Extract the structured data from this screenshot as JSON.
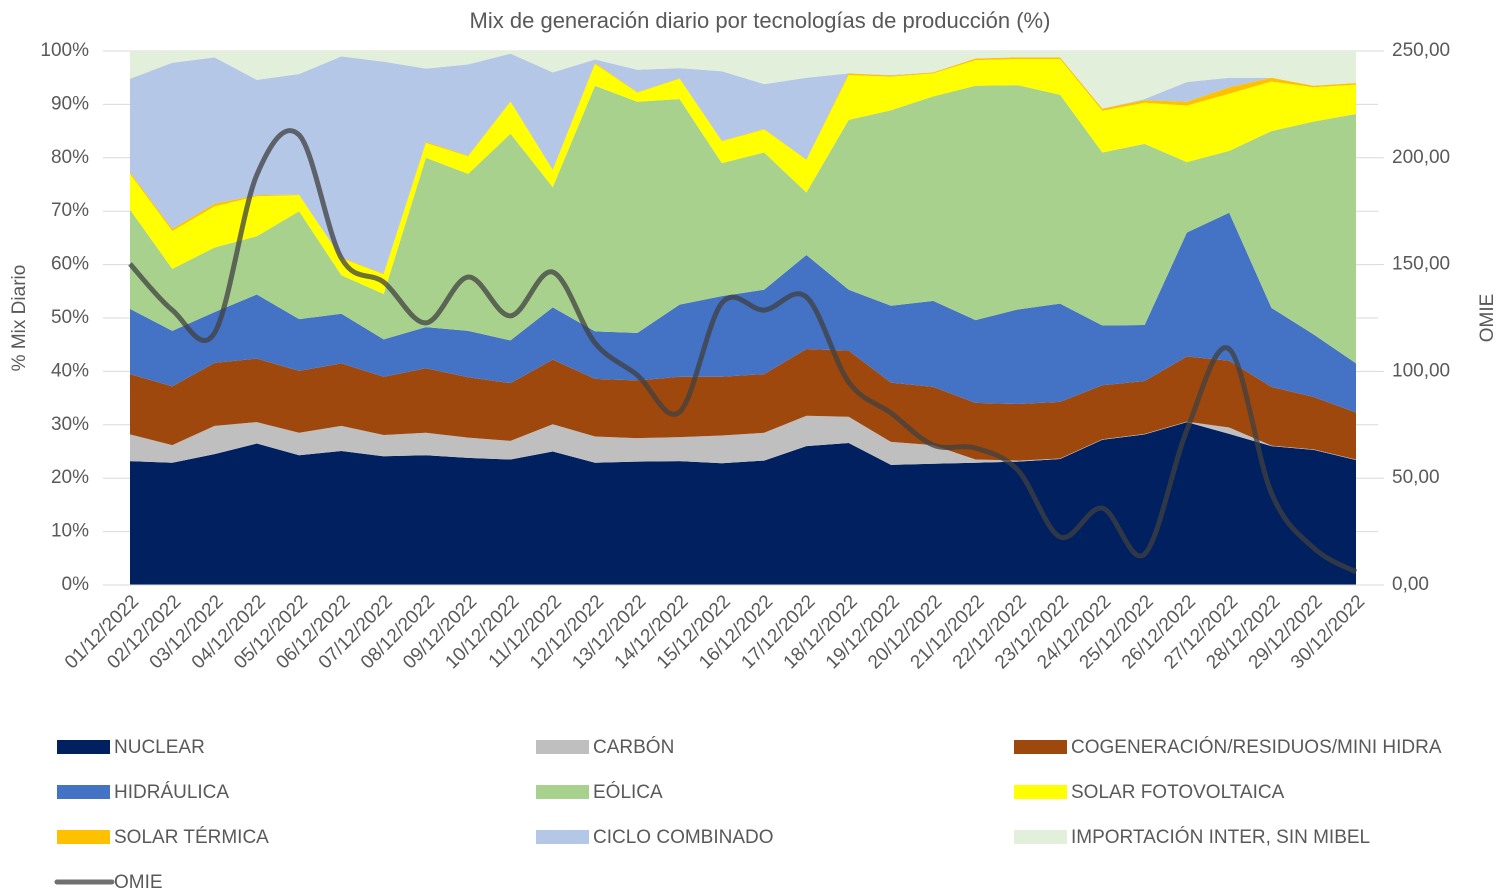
{
  "chart_data": {
    "type": "area",
    "title": "Mix de generación diario por tecnologías de producción (%)",
    "y_label": "% Mix Diario",
    "y2_label": "OMIE",
    "categories": [
      "01/12/2022",
      "02/12/2022",
      "03/12/2022",
      "04/12/2022",
      "05/12/2022",
      "06/12/2022",
      "07/12/2022",
      "08/12/2022",
      "09/12/2022",
      "10/12/2022",
      "11/12/2022",
      "12/12/2022",
      "13/12/2022",
      "14/12/2022",
      "15/12/2022",
      "16/12/2022",
      "17/12/2022",
      "18/12/2022",
      "19/12/2022",
      "20/12/2022",
      "21/12/2022",
      "22/12/2022",
      "23/12/2022",
      "24/12/2022",
      "25/12/2022",
      "26/12/2022",
      "27/12/2022",
      "28/12/2022",
      "29/12/2022",
      "30/12/2022"
    ],
    "stacked": true,
    "grid": true,
    "legend": "bottom",
    "ylim": [
      0,
      100
    ],
    "yticks": [
      {
        "value": 0,
        "label": "0%"
      },
      {
        "value": 10,
        "label": "10%"
      },
      {
        "value": 20,
        "label": "20%"
      },
      {
        "value": 30,
        "label": "30%"
      },
      {
        "value": 40,
        "label": "40%"
      },
      {
        "value": 50,
        "label": "50%"
      },
      {
        "value": 60,
        "label": "60%"
      },
      {
        "value": 70,
        "label": "70%"
      },
      {
        "value": 80,
        "label": "80%"
      },
      {
        "value": 90,
        "label": "90%"
      },
      {
        "value": 100,
        "label": "100%"
      }
    ],
    "y2lim": [
      0,
      250
    ],
    "y2ticks": [
      {
        "value": 0,
        "label": "0,00"
      },
      {
        "value": 50,
        "label": "50,00"
      },
      {
        "value": 100,
        "label": "100,00"
      },
      {
        "value": 150,
        "label": "150,00"
      },
      {
        "value": 200,
        "label": "200,00"
      },
      {
        "value": 250,
        "label": "250,00"
      }
    ],
    "series": [
      {
        "name": "NUCLEAR",
        "color": "#002060",
        "values": [
          23.2,
          22.9,
          24.5,
          26.5,
          24.3,
          25.1,
          24.1,
          24.3,
          23.8,
          23.5,
          25.0,
          22.9,
          23.1,
          23.2,
          22.8,
          23.3,
          26.0,
          26.6,
          22.5,
          22.7,
          22.9,
          23.1,
          23.6,
          27.2,
          28.2,
          30.5,
          28.3,
          26.0,
          25.3,
          23.4
        ]
      },
      {
        "name": "CARBÓN",
        "color": "#bfbfbf",
        "values": [
          5.0,
          3.3,
          5.3,
          4.0,
          4.2,
          4.7,
          4.0,
          4.2,
          3.8,
          3.5,
          5.1,
          4.9,
          4.4,
          4.5,
          5.2,
          5.2,
          5.7,
          4.9,
          4.3,
          3.5,
          0.6,
          0.2,
          0.1,
          0.1,
          0.1,
          0.1,
          1.2,
          0.1,
          0.1,
          0.1
        ]
      },
      {
        "name": "COGENERACIÓN/RESIDUOS/MINI HIDRA",
        "color": "#9e480e",
        "values": [
          11.3,
          11.0,
          11.8,
          11.9,
          11.6,
          11.7,
          10.9,
          12.1,
          11.3,
          10.8,
          12.1,
          10.8,
          10.8,
          11.3,
          11.0,
          11.0,
          12.5,
          12.4,
          11.1,
          10.9,
          10.6,
          10.6,
          10.6,
          10.1,
          9.9,
          12.2,
          12.5,
          11.0,
          9.8,
          8.8
        ]
      },
      {
        "name": "HIDRÁULICA",
        "color": "#4472c4",
        "values": [
          12.2,
          10.4,
          9.5,
          12.0,
          9.7,
          9.3,
          7.0,
          7.7,
          8.7,
          8.0,
          9.8,
          8.9,
          8.9,
          13.5,
          15.1,
          15.8,
          17.6,
          11.4,
          14.4,
          16.1,
          15.5,
          17.7,
          18.4,
          11.2,
          10.5,
          23.2,
          27.7,
          14.8,
          11.7,
          9.2
        ]
      },
      {
        "name": "EÓLICA",
        "color": "#a9d18e",
        "values": [
          18.6,
          11.6,
          12.1,
          10.9,
          20.2,
          7.2,
          8.5,
          31.7,
          29.4,
          38.7,
          22.5,
          46.0,
          43.3,
          38.5,
          24.9,
          25.7,
          11.7,
          31.8,
          36.6,
          38.3,
          43.9,
          42.0,
          39.1,
          32.4,
          33.9,
          13.2,
          11.6,
          33.1,
          39.9,
          46.7
        ]
      },
      {
        "name": "SOLAR FOTOVOLTAICA",
        "color": "#ffff00",
        "values": [
          6.7,
          7.1,
          7.7,
          7.5,
          3.0,
          3.2,
          3.7,
          2.8,
          3.3,
          6.0,
          3.2,
          4.1,
          1.7,
          3.8,
          4.1,
          4.3,
          6.1,
          8.4,
          6.3,
          4.3,
          4.8,
          4.9,
          6.7,
          7.8,
          7.7,
          10.6,
          10.7,
          9.3,
          6.4,
          5.5
        ]
      },
      {
        "name": "SOLAR TÉRMICA",
        "color": "#ffc000",
        "values": [
          0.3,
          0.4,
          0.5,
          0.2,
          0.1,
          0.1,
          0.1,
          0.2,
          0.1,
          0.1,
          0.1,
          0.2,
          0.1,
          0.1,
          0.1,
          0.1,
          0.1,
          0.3,
          0.2,
          0.2,
          0.3,
          0.3,
          0.3,
          0.4,
          0.5,
          0.7,
          1.2,
          0.7,
          0.3,
          0.3
        ]
      },
      {
        "name": "CICLO COMBINADO",
        "color": "#b4c7e7",
        "values": [
          17.5,
          31.1,
          27.4,
          21.6,
          22.6,
          37.7,
          39.7,
          13.7,
          17.1,
          8.9,
          18.2,
          0.6,
          4.2,
          1.9,
          13.0,
          8.4,
          15.3,
          0.0,
          0.1,
          0.0,
          0.0,
          0.0,
          0.0,
          0.0,
          0.2,
          3.7,
          1.8,
          0.0,
          0.0,
          0.0
        ]
      },
      {
        "name": "IMPORTACIÓN INTER, SIN MIBEL",
        "color": "#e2efda",
        "values": [
          5.2,
          2.2,
          1.2,
          5.4,
          4.3,
          1.0,
          2.0,
          3.3,
          2.5,
          0.5,
          4.0,
          1.6,
          3.5,
          3.2,
          3.8,
          6.2,
          5.0,
          4.2,
          4.5,
          4.0,
          1.4,
          1.2,
          1.2,
          10.8,
          9.0,
          5.8,
          5.0,
          5.0,
          6.5,
          6.0
        ]
      },
      {
        "name": "OMIE",
        "color": "#404040",
        "type": "line",
        "axis": "y2",
        "values": [
          150.3,
          128.7,
          118.0,
          192.0,
          210.7,
          153.0,
          141.8,
          122.7,
          144.2,
          126.0,
          146.5,
          113.3,
          98.3,
          81.0,
          132.0,
          128.7,
          134.8,
          95.0,
          80.5,
          65.5,
          64.1,
          53.8,
          22.5,
          36.0,
          14.5,
          72.6,
          110.5,
          43.0,
          17.3,
          6.1
        ]
      }
    ]
  }
}
